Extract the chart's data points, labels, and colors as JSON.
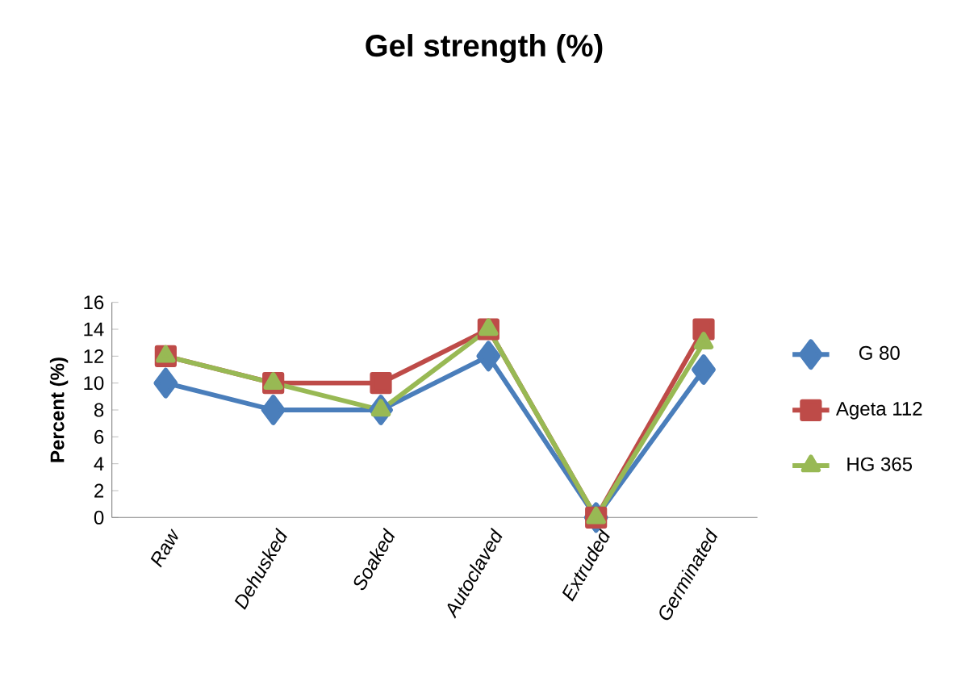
{
  "chart_data": {
    "type": "line",
    "title": "Gel strength (%)",
    "ylabel": "Percent (%)",
    "categories": [
      "Raw",
      "Dehusked",
      "Soaked",
      "Autoclaved",
      "Extruded",
      "Germinated"
    ],
    "series": [
      {
        "name": "G 80",
        "color": "#4a7ebb",
        "marker": "diamond",
        "values": [
          10,
          8,
          8,
          12,
          0,
          11
        ]
      },
      {
        "name": "Ageta 112",
        "color": "#be4b48",
        "marker": "square",
        "values": [
          12,
          10,
          10,
          14,
          0,
          14
        ]
      },
      {
        "name": "HG 365",
        "color": "#98b954",
        "marker": "triangle",
        "values": [
          12,
          10,
          8,
          14,
          0,
          13
        ]
      }
    ],
    "ylim": [
      0,
      16
    ],
    "yticks": [
      0,
      2,
      4,
      6,
      8,
      10,
      12,
      14,
      16
    ],
    "grid": false,
    "legend": "right"
  }
}
